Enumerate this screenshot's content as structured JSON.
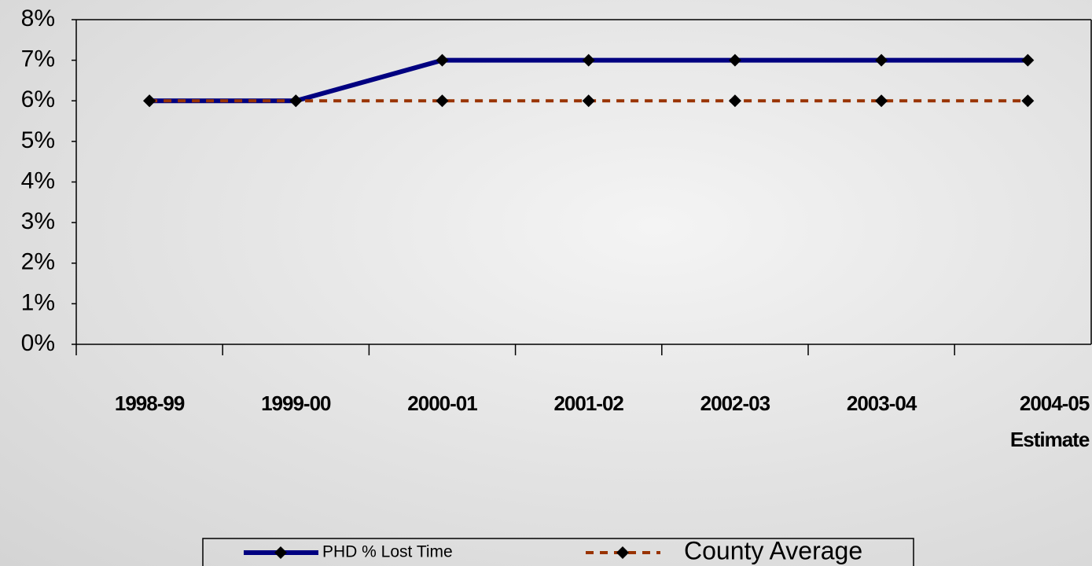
{
  "chart_data": {
    "type": "line",
    "categories": [
      "1998-99",
      "1999-00",
      "2000-01",
      "2001-02",
      "2002-03",
      "2003-04",
      "2004-05\nEstimate"
    ],
    "series": [
      {
        "name": "PHD % Lost Time",
        "color": "#000080",
        "values": [
          6,
          6,
          7,
          7,
          7,
          7,
          7
        ]
      },
      {
        "name": "County Average",
        "color": "#993300",
        "values": [
          6,
          6,
          6,
          6,
          6,
          6,
          6
        ]
      }
    ],
    "ylim": [
      0,
      8
    ],
    "yticks": [
      {
        "value": 0,
        "label": "0%"
      },
      {
        "value": 1,
        "label": "1%"
      },
      {
        "value": 2,
        "label": "2%"
      },
      {
        "value": 3,
        "label": "3%"
      },
      {
        "value": 4,
        "label": "4%"
      },
      {
        "value": 5,
        "label": "5%"
      },
      {
        "value": 6,
        "label": "6%"
      },
      {
        "value": 7,
        "label": "7%"
      },
      {
        "value": 8,
        "label": "8%"
      }
    ],
    "legend": "bottom"
  }
}
